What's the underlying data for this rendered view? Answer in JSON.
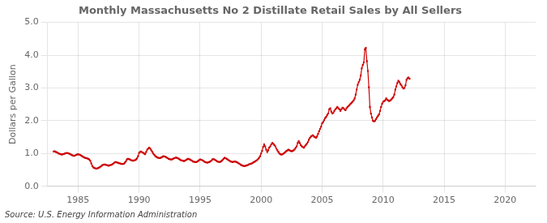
{
  "chart_data": {
    "type": "line",
    "title": "Monthly Massachusetts No 2 Distillate Retail Sales by All Sellers",
    "ylabel": "Dollars per Gallon",
    "annotations": [
      "Source: U.S. Energy Information Administration"
    ],
    "color": "#cc0000",
    "marker": "square",
    "grid": true,
    "xlim": [
      1982.5,
      2022.5
    ],
    "ylim": [
      0.0,
      5.0
    ],
    "xticks": [
      1985,
      1990,
      1995,
      2000,
      2005,
      2010,
      2015,
      2020
    ],
    "yticks": [
      {
        "value": 0.0,
        "label": "0.0"
      },
      {
        "value": 1.0,
        "label": "1.0"
      },
      {
        "value": 2.0,
        "label": "2.0"
      },
      {
        "value": 3.0,
        "label": "3.0"
      },
      {
        "value": 4.0,
        "label": "4.0"
      },
      {
        "value": 5.0,
        "label": "5.0"
      }
    ],
    "x": [
      1983.0,
      1983.083,
      1983.167,
      1983.25,
      1983.333,
      1983.417,
      1983.5,
      1983.583,
      1983.667,
      1983.75,
      1983.833,
      1983.917,
      1984.0,
      1984.083,
      1984.167,
      1984.25,
      1984.333,
      1984.417,
      1984.5,
      1984.583,
      1984.667,
      1984.75,
      1984.833,
      1984.917,
      1985.0,
      1985.083,
      1985.167,
      1985.25,
      1985.333,
      1985.417,
      1985.5,
      1985.583,
      1985.667,
      1985.75,
      1985.833,
      1985.917,
      1986.0,
      1986.083,
      1986.167,
      1986.25,
      1986.333,
      1986.417,
      1986.5,
      1986.583,
      1986.667,
      1986.75,
      1986.833,
      1986.917,
      1987.0,
      1987.083,
      1987.167,
      1987.25,
      1987.333,
      1987.417,
      1987.5,
      1987.583,
      1987.667,
      1987.75,
      1987.833,
      1987.917,
      1988.0,
      1988.083,
      1988.167,
      1988.25,
      1988.333,
      1988.417,
      1988.5,
      1988.583,
      1988.667,
      1988.75,
      1988.833,
      1988.917,
      1989.0,
      1989.083,
      1989.167,
      1989.25,
      1989.333,
      1989.417,
      1989.5,
      1989.583,
      1989.667,
      1989.75,
      1989.833,
      1989.917,
      1990.0,
      1990.083,
      1990.167,
      1990.25,
      1990.333,
      1990.417,
      1990.5,
      1990.583,
      1990.667,
      1990.75,
      1990.833,
      1990.917,
      1991.0,
      1991.083,
      1991.167,
      1991.25,
      1991.333,
      1991.417,
      1991.5,
      1991.583,
      1991.667,
      1991.75,
      1991.833,
      1991.917,
      1992.0,
      1992.083,
      1992.167,
      1992.25,
      1992.333,
      1992.417,
      1992.5,
      1992.583,
      1992.667,
      1992.75,
      1992.833,
      1992.917,
      1993.0,
      1993.083,
      1993.167,
      1993.25,
      1993.333,
      1993.417,
      1993.5,
      1993.583,
      1993.667,
      1993.75,
      1993.833,
      1993.917,
      1994.0,
      1994.083,
      1994.167,
      1994.25,
      1994.333,
      1994.417,
      1994.5,
      1994.583,
      1994.667,
      1994.75,
      1994.833,
      1994.917,
      1995.0,
      1995.083,
      1995.167,
      1995.25,
      1995.333,
      1995.417,
      1995.5,
      1995.583,
      1995.667,
      1995.75,
      1995.833,
      1995.917,
      1996.0,
      1996.083,
      1996.167,
      1996.25,
      1996.333,
      1996.417,
      1996.5,
      1996.583,
      1996.667,
      1996.75,
      1996.833,
      1996.917,
      1997.0,
      1997.083,
      1997.167,
      1997.25,
      1997.333,
      1997.417,
      1997.5,
      1997.583,
      1997.667,
      1997.75,
      1997.833,
      1997.917,
      1998.0,
      1998.083,
      1998.167,
      1998.25,
      1998.333,
      1998.417,
      1998.5,
      1998.583,
      1998.667,
      1998.75,
      1998.833,
      1998.917,
      1999.0,
      1999.083,
      1999.167,
      1999.25,
      1999.333,
      1999.417,
      1999.5,
      1999.583,
      1999.667,
      1999.75,
      1999.833,
      1999.917,
      2000.0,
      2000.083,
      2000.167,
      2000.25,
      2000.333,
      2000.417,
      2000.5,
      2000.583,
      2000.667,
      2000.75,
      2000.833,
      2000.917,
      2001.0,
      2001.083,
      2001.167,
      2001.25,
      2001.333,
      2001.417,
      2001.5,
      2001.583,
      2001.667,
      2001.75,
      2001.833,
      2001.917,
      2002.0,
      2002.083,
      2002.167,
      2002.25,
      2002.333,
      2002.417,
      2002.5,
      2002.583,
      2002.667,
      2002.75,
      2002.833,
      2002.917,
      2003.0,
      2003.083,
      2003.167,
      2003.25,
      2003.333,
      2003.417,
      2003.5,
      2003.583,
      2003.667,
      2003.75,
      2003.833,
      2003.917,
      2004.0,
      2004.083,
      2004.167,
      2004.25,
      2004.333,
      2004.417,
      2004.5,
      2004.583,
      2004.667,
      2004.75,
      2004.833,
      2004.917,
      2005.0,
      2005.083,
      2005.167,
      2005.25,
      2005.333,
      2005.417,
      2005.5,
      2005.583,
      2005.667,
      2005.75,
      2005.833,
      2005.917,
      2006.0,
      2006.083,
      2006.167,
      2006.25,
      2006.333,
      2006.417,
      2006.5,
      2006.583,
      2006.667,
      2006.75,
      2006.833,
      2006.917,
      2007.0,
      2007.083,
      2007.167,
      2007.25,
      2007.333,
      2007.417,
      2007.5,
      2007.583,
      2007.667,
      2007.75,
      2007.833,
      2007.917,
      2008.0,
      2008.083,
      2008.167,
      2008.25,
      2008.333,
      2008.417,
      2008.5,
      2008.583,
      2008.667,
      2008.75,
      2008.833,
      2008.917,
      2009.0,
      2009.083,
      2009.167,
      2009.25,
      2009.333,
      2009.417,
      2009.5,
      2009.583,
      2009.667,
      2009.75,
      2009.833,
      2009.917,
      2010.0,
      2010.083,
      2010.167,
      2010.25,
      2010.333,
      2010.417,
      2010.5,
      2010.583,
      2010.667,
      2010.75,
      2010.833,
      2010.917,
      2011.0,
      2011.083,
      2011.167,
      2011.25,
      2011.333,
      2011.417,
      2011.5,
      2011.583,
      2011.667,
      2011.75,
      2011.833,
      2011.917,
      2012.0,
      2012.083,
      2012.167
    ],
    "values": [
      1.06,
      1.07,
      1.05,
      1.04,
      1.02,
      1.0,
      0.99,
      0.98,
      0.97,
      0.98,
      0.99,
      1.0,
      1.01,
      1.02,
      1.01,
      1.0,
      0.99,
      0.97,
      0.95,
      0.94,
      0.93,
      0.94,
      0.96,
      0.97,
      0.98,
      0.97,
      0.96,
      0.94,
      0.92,
      0.9,
      0.88,
      0.87,
      0.86,
      0.85,
      0.84,
      0.82,
      0.78,
      0.7,
      0.62,
      0.58,
      0.56,
      0.55,
      0.54,
      0.55,
      0.56,
      0.58,
      0.6,
      0.62,
      0.65,
      0.66,
      0.67,
      0.66,
      0.65,
      0.64,
      0.63,
      0.64,
      0.65,
      0.66,
      0.68,
      0.7,
      0.73,
      0.74,
      0.73,
      0.72,
      0.71,
      0.7,
      0.69,
      0.68,
      0.68,
      0.69,
      0.72,
      0.76,
      0.82,
      0.84,
      0.83,
      0.82,
      0.8,
      0.79,
      0.78,
      0.79,
      0.8,
      0.82,
      0.85,
      0.92,
      1.02,
      1.05,
      1.06,
      1.04,
      1.02,
      1.0,
      0.98,
      1.05,
      1.12,
      1.15,
      1.18,
      1.15,
      1.1,
      1.05,
      1.0,
      0.96,
      0.92,
      0.9,
      0.88,
      0.87,
      0.86,
      0.87,
      0.88,
      0.9,
      0.92,
      0.91,
      0.9,
      0.88,
      0.86,
      0.84,
      0.83,
      0.82,
      0.82,
      0.83,
      0.85,
      0.86,
      0.88,
      0.87,
      0.86,
      0.84,
      0.82,
      0.8,
      0.79,
      0.78,
      0.77,
      0.78,
      0.8,
      0.82,
      0.84,
      0.83,
      0.82,
      0.8,
      0.78,
      0.76,
      0.75,
      0.74,
      0.74,
      0.75,
      0.77,
      0.8,
      0.82,
      0.81,
      0.8,
      0.78,
      0.76,
      0.74,
      0.73,
      0.72,
      0.73,
      0.74,
      0.76,
      0.78,
      0.82,
      0.83,
      0.82,
      0.8,
      0.78,
      0.76,
      0.75,
      0.74,
      0.75,
      0.77,
      0.8,
      0.84,
      0.87,
      0.86,
      0.84,
      0.82,
      0.8,
      0.78,
      0.76,
      0.75,
      0.74,
      0.75,
      0.76,
      0.75,
      0.74,
      0.72,
      0.7,
      0.68,
      0.66,
      0.64,
      0.63,
      0.62,
      0.62,
      0.63,
      0.64,
      0.65,
      0.67,
      0.68,
      0.69,
      0.7,
      0.72,
      0.74,
      0.76,
      0.78,
      0.8,
      0.83,
      0.87,
      0.92,
      1.0,
      1.08,
      1.2,
      1.28,
      1.22,
      1.12,
      1.05,
      1.1,
      1.18,
      1.22,
      1.28,
      1.32,
      1.3,
      1.26,
      1.22,
      1.15,
      1.1,
      1.05,
      1.0,
      0.98,
      0.97,
      0.98,
      1.0,
      1.02,
      1.05,
      1.08,
      1.1,
      1.12,
      1.1,
      1.08,
      1.07,
      1.08,
      1.1,
      1.13,
      1.18,
      1.22,
      1.32,
      1.38,
      1.32,
      1.26,
      1.22,
      1.2,
      1.18,
      1.22,
      1.26,
      1.3,
      1.35,
      1.42,
      1.48,
      1.52,
      1.54,
      1.56,
      1.52,
      1.5,
      1.48,
      1.52,
      1.6,
      1.68,
      1.75,
      1.82,
      1.92,
      1.96,
      2.02,
      2.08,
      2.12,
      2.18,
      2.22,
      2.35,
      2.38,
      2.28,
      2.22,
      2.24,
      2.3,
      2.35,
      2.38,
      2.42,
      2.38,
      2.35,
      2.3,
      2.35,
      2.4,
      2.38,
      2.35,
      2.32,
      2.38,
      2.42,
      2.45,
      2.48,
      2.52,
      2.55,
      2.58,
      2.62,
      2.68,
      2.8,
      2.95,
      3.1,
      3.18,
      3.25,
      3.38,
      3.6,
      3.7,
      3.78,
      4.18,
      4.22,
      3.82,
      3.52,
      3.02,
      2.42,
      2.22,
      2.1,
      2.0,
      1.98,
      2.0,
      2.05,
      2.1,
      2.15,
      2.2,
      2.3,
      2.42,
      2.52,
      2.58,
      2.6,
      2.62,
      2.68,
      2.64,
      2.62,
      2.6,
      2.62,
      2.65,
      2.68,
      2.72,
      2.8,
      2.95,
      3.05,
      3.15,
      3.22,
      3.18,
      3.12,
      3.08,
      3.02,
      2.98,
      3.0,
      3.08,
      3.25,
      3.3,
      3.32,
      3.28
    ]
  }
}
